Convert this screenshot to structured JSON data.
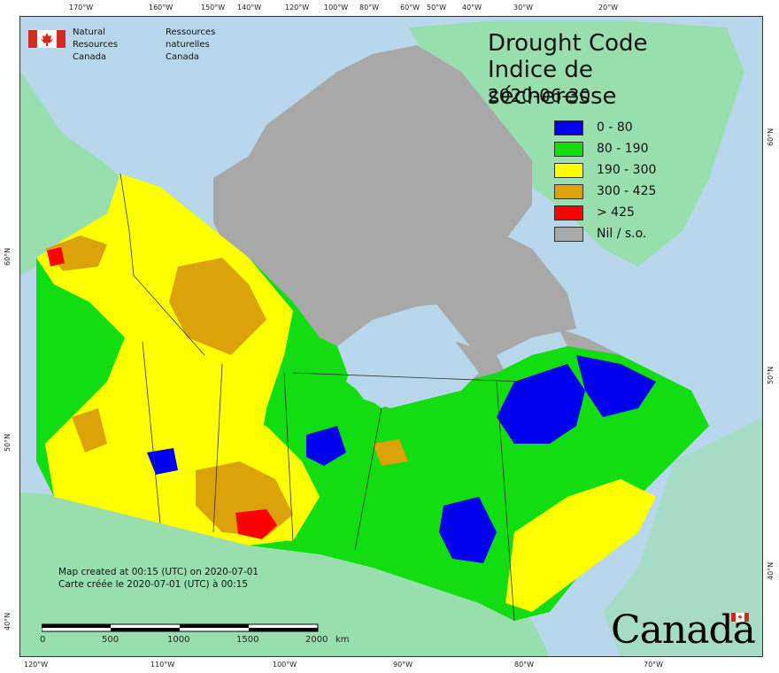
{
  "title": {
    "en": "Drought Code",
    "fr": "Indice de sécheresse",
    "date": "2020-06-30"
  },
  "legend": [
    {
      "label": "0 - 80",
      "color": "#0000ee"
    },
    {
      "label": "80 - 190",
      "color": "#11dd11"
    },
    {
      "label": "190 - 300",
      "color": "#ffff00"
    },
    {
      "label": "300 - 425",
      "color": "#dba20a"
    },
    {
      "label": "> 425",
      "color": "#ff0000"
    },
    {
      "label": "Nil / s.o.",
      "color": "#a8a8a8"
    }
  ],
  "agency": {
    "en_line1": "Natural Resources",
    "en_line2": "Canada",
    "fr_line1": "Ressources naturelles",
    "fr_line2": "Canada"
  },
  "credit": {
    "en": "Map created at 00:15 (UTC) on 2020-07-01",
    "fr": "Carte créée le 2020-07-01 (UTC) à 00:15"
  },
  "scale_bar": {
    "labels": [
      "0",
      "500",
      "1000",
      "1500",
      "2000"
    ],
    "unit": "km"
  },
  "wordmark": "Canada",
  "top_ticks": [
    "170°W",
    "160°W",
    "150°W",
    "140°W",
    "120°W",
    "100°W",
    "80°W",
    "60°W",
    "50°W",
    "40°W",
    "30°W",
    "20°W"
  ],
  "bottom_ticks": [
    "120°W",
    "110°W",
    "100°W",
    "90°W",
    "80°W",
    "70°W"
  ],
  "left_ticks": [
    "60°N",
    "50°N",
    "40°N"
  ],
  "right_ticks": [
    "60°N",
    "50°N",
    "40°N"
  ],
  "colors": {
    "ocean": "#b8d7ec",
    "land_outside": "#99dfae",
    "nil": "#a8a8a8"
  }
}
